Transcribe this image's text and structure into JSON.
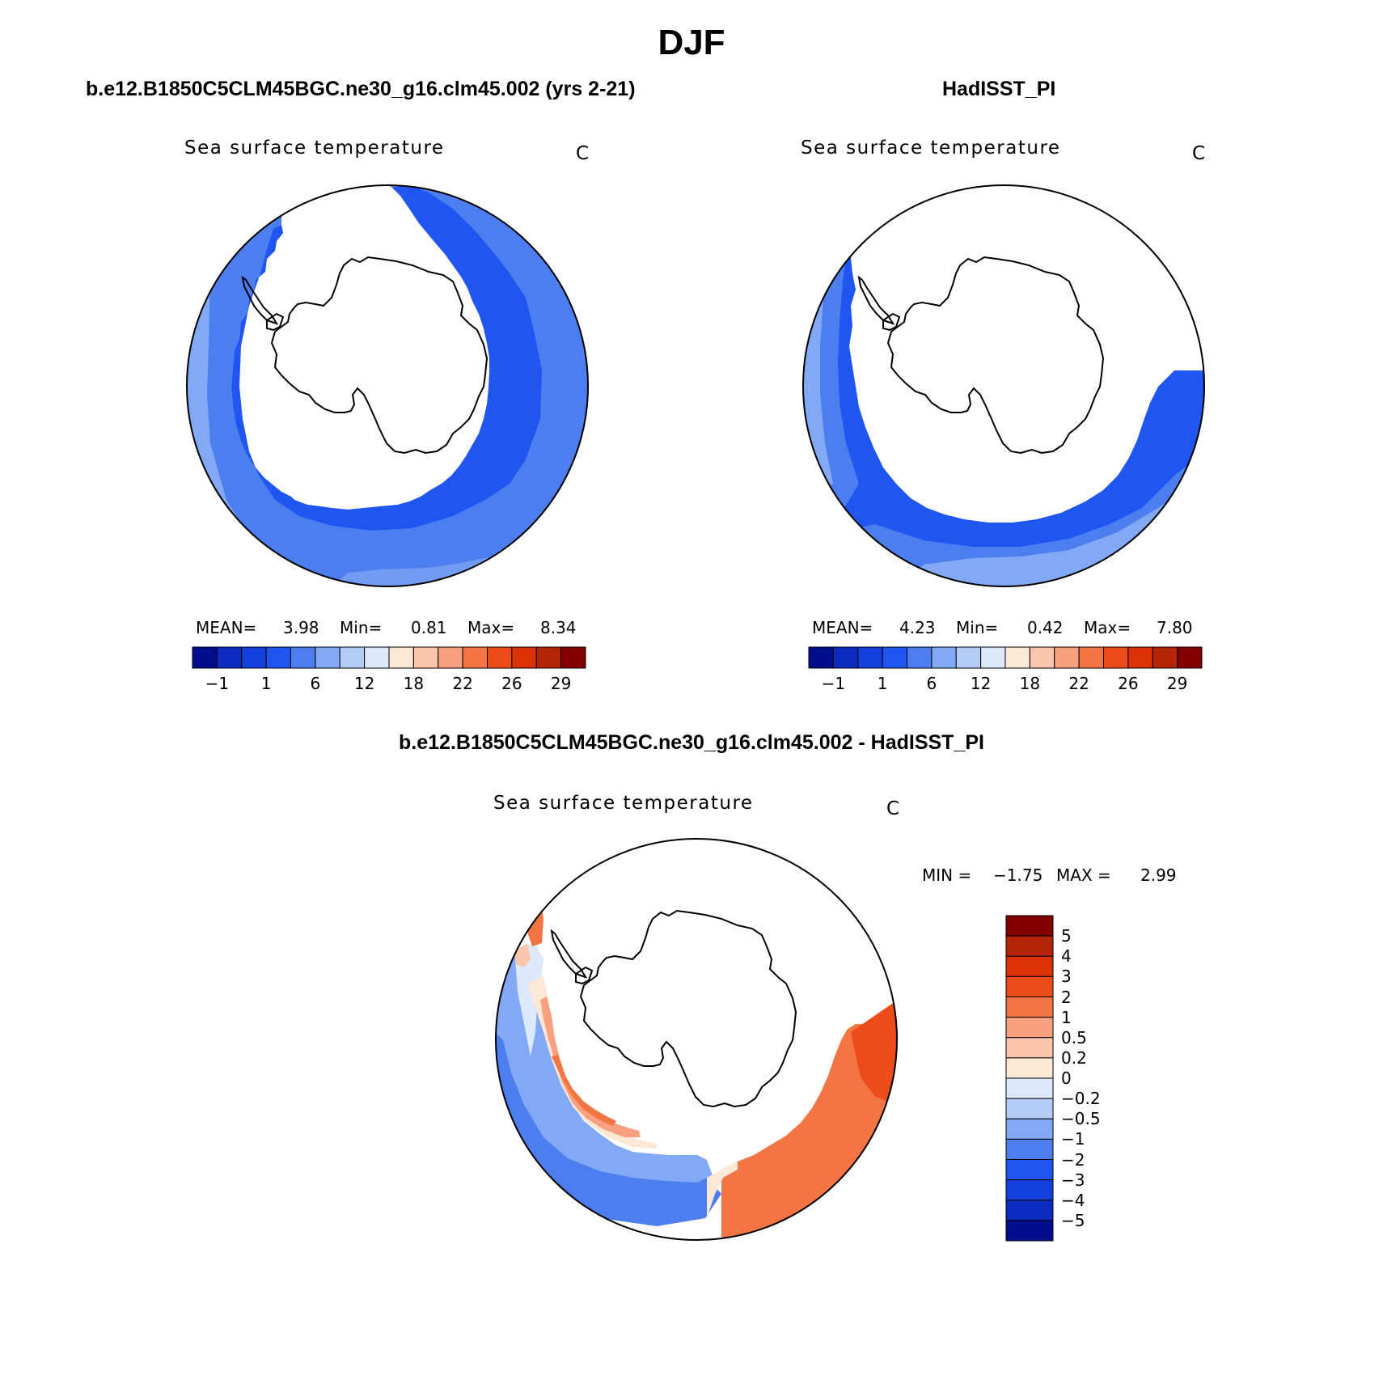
{
  "figure": {
    "title": "DJF"
  },
  "colors": {
    "hcolorbar": [
      "#000e8c",
      "#0c2bbf",
      "#1340dd",
      "#1f55f0",
      "#4d7ef0",
      "#82a9f5",
      "#b3cdf8",
      "#dbe9fb",
      "#fde7d5",
      "#fcc6ad",
      "#f9a07e",
      "#f47544",
      "#ee4b1a",
      "#db3208",
      "#b42506",
      "#840000"
    ],
    "vcolorbar": [
      "#840000",
      "#b42506",
      "#db3208",
      "#ee4b1a",
      "#f47544",
      "#f9a07e",
      "#fcc6ad",
      "#fde7d5",
      "#dbe9fb",
      "#b3cdf8",
      "#82a9f5",
      "#4d7ef0",
      "#1f55f0",
      "#1340dd",
      "#0c2bbf",
      "#000e8c"
    ]
  },
  "panels": [
    {
      "title": "b.e12.B1850C5CLM45BGC.ne30_g16.clm45.002 (yrs 2-21)",
      "variable": "Sea surface temperature",
      "units": "C",
      "mean_label": "MEAN=",
      "mean": "3.98",
      "min_label": "Min=",
      "min": "0.81",
      "max_label": "Max=",
      "max": "8.34",
      "colorbar_ticks": [
        "−1",
        "1",
        "6",
        "12",
        "18",
        "22",
        "26",
        "29"
      ]
    },
    {
      "title": "HadISST_PI",
      "variable": "Sea surface temperature",
      "units": "C",
      "mean_label": "MEAN=",
      "mean": "4.23",
      "min_label": "Min=",
      "min": "0.42",
      "max_label": "Max=",
      "max": "7.80",
      "colorbar_ticks": [
        "−1",
        "1",
        "6",
        "12",
        "18",
        "22",
        "26",
        "29"
      ]
    }
  ],
  "difference": {
    "title": "b.e12.B1850C5CLM45BGC.ne30_g16.clm45.002 - HadISST_PI",
    "variable": "Sea surface temperature",
    "units": "C",
    "min_label": "MIN =",
    "min": "−1.75",
    "max_label": "MAX =",
    "max": "2.99",
    "colorbar_ticks": [
      "5",
      "4",
      "3",
      "2",
      "1",
      "0.5",
      "0.2",
      "0",
      "−0.2",
      "−0.5",
      "−1",
      "−2",
      "−3",
      "−4",
      "−5"
    ]
  }
}
